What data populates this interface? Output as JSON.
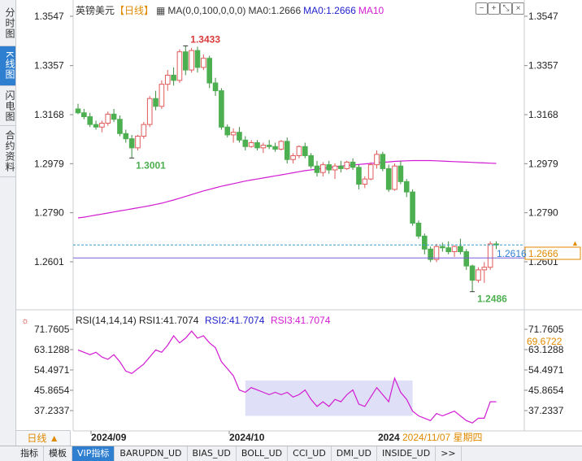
{
  "sidebar": {
    "tabs": [
      {
        "label": "分时图",
        "active": false
      },
      {
        "label": "K线图",
        "active": true
      },
      {
        "label": "闪电图",
        "active": false
      },
      {
        "label": "合约资料",
        "active": false
      }
    ]
  },
  "header": {
    "instrument": "英镑美元",
    "period_tag": "【日线】",
    "ma_settings": "MA(0,0,100,0,0,0)",
    "ma0_a": "MA0:1.2666",
    "ma0_b": "MA0:1.2666",
    "ma10": "MA10",
    "toolbar_icons": [
      "minus-icon",
      "plus-icon",
      "zoom-out-icon",
      "close-icon"
    ]
  },
  "rsi_header": {
    "settings": "RSI(14,14,14)",
    "rsi1": "RSI1:41.7074",
    "rsi2": "RSI2:41.7074",
    "rsi3": "RSI3:41.7074"
  },
  "price_axis": {
    "left_ticks": [
      "1.3547",
      "1.3357",
      "1.3168",
      "1.2979",
      "1.2790",
      "1.2601"
    ],
    "right_ticks": [
      "1.3547",
      "1.3357",
      "1.3168",
      "1.2979",
      "1.2790",
      "1.2601"
    ],
    "current_price": "1.2666",
    "cursor_price": "1.2616"
  },
  "rsi_axis": {
    "left_ticks": [
      "71.7605",
      "63.1288",
      "54.4971",
      "45.8654",
      "37.2337"
    ],
    "right_ticks": [
      "71.7605",
      "63.1288",
      "54.4971",
      "45.8654",
      "37.2337"
    ],
    "current_value": "69.6722"
  },
  "time_axis": {
    "labels": [
      "2024/09",
      "2024/10",
      "2024"
    ],
    "cursor_date": "2024/11/07 星期四"
  },
  "annotations": {
    "high_label": "1.3433",
    "low_label_1": "1.3001",
    "low_label_2": "1.2486"
  },
  "colors": {
    "up": "#e05a5a",
    "down": "#4caf50",
    "ma": "#d21bd2",
    "rsi": "#d21bd2",
    "highlight": "#dfe0f7",
    "accent": "#2f7fd1"
  },
  "bottom_tabs": [
    "指标",
    "模板",
    "VIP指标",
    "BARUPDN_UD",
    "BIAS_UD",
    "BOLL_UD",
    "CCI_UD",
    "DMI_UD",
    "INSIDE_UD",
    ">>"
  ],
  "period_button": "日线 ▲",
  "chart_data": {
    "type": "candlestick",
    "price_ylim": [
      1.2486,
      1.3547
    ],
    "candles": [
      [
        1.319,
        1.321,
        1.317,
        1.3175
      ],
      [
        1.3175,
        1.319,
        1.315,
        1.316
      ],
      [
        1.316,
        1.3175,
        1.312,
        1.313
      ],
      [
        1.313,
        1.3145,
        1.311,
        1.312
      ],
      [
        1.312,
        1.3145,
        1.31,
        1.3135
      ],
      [
        1.3135,
        1.318,
        1.3125,
        1.317
      ],
      [
        1.317,
        1.319,
        1.314,
        1.315
      ],
      [
        1.315,
        1.3165,
        1.3085,
        1.3095
      ],
      [
        1.3095,
        1.311,
        1.306,
        1.3075
      ],
      [
        1.3075,
        1.309,
        1.3001,
        1.304
      ],
      [
        1.304,
        1.309,
        1.303,
        1.3085
      ],
      [
        1.3085,
        1.314,
        1.3075,
        1.313
      ],
      [
        1.313,
        1.324,
        1.312,
        1.323
      ],
      [
        1.323,
        1.326,
        1.3185,
        1.32
      ],
      [
        1.32,
        1.33,
        1.319,
        1.3285
      ],
      [
        1.3285,
        1.334,
        1.326,
        1.332
      ],
      [
        1.332,
        1.335,
        1.328,
        1.33
      ],
      [
        1.33,
        1.342,
        1.329,
        1.341
      ],
      [
        1.341,
        1.3433,
        1.332,
        1.334
      ],
      [
        1.334,
        1.3425,
        1.333,
        1.3415
      ],
      [
        1.3415,
        1.343,
        1.333,
        1.335
      ],
      [
        1.335,
        1.34,
        1.334,
        1.3385
      ],
      [
        1.3385,
        1.3395,
        1.327,
        1.329
      ],
      [
        1.329,
        1.331,
        1.324,
        1.326
      ],
      [
        1.326,
        1.327,
        1.311,
        1.312
      ],
      [
        1.312,
        1.313,
        1.308,
        1.309
      ],
      [
        1.309,
        1.3115,
        1.306,
        1.31
      ],
      [
        1.31,
        1.312,
        1.306,
        1.307
      ],
      [
        1.307,
        1.3085,
        1.303,
        1.3045
      ],
      [
        1.3045,
        1.307,
        1.304,
        1.306
      ],
      [
        1.306,
        1.307,
        1.303,
        1.304
      ],
      [
        1.304,
        1.306,
        1.302,
        1.305
      ],
      [
        1.305,
        1.307,
        1.3035,
        1.3045
      ],
      [
        1.3045,
        1.306,
        1.3025,
        1.3035
      ],
      [
        1.3035,
        1.307,
        1.303,
        1.3065
      ],
      [
        1.3065,
        1.308,
        1.298,
        1.2995
      ],
      [
        1.2995,
        1.302,
        1.298,
        1.301
      ],
      [
        1.301,
        1.305,
        1.3,
        1.3045
      ],
      [
        1.3045,
        1.306,
        1.3,
        1.301
      ],
      [
        1.301,
        1.302,
        1.296,
        1.297
      ],
      [
        1.297,
        1.299,
        1.293,
        1.2945
      ],
      [
        1.2945,
        1.2985,
        1.293,
        1.2975
      ],
      [
        1.2975,
        1.299,
        1.294,
        1.2955
      ],
      [
        1.2955,
        1.298,
        1.292,
        1.297
      ],
      [
        1.297,
        1.299,
        1.2945,
        1.296
      ],
      [
        1.296,
        1.299,
        1.2955,
        1.2985
      ],
      [
        1.2985,
        1.3,
        1.2955,
        1.2965
      ],
      [
        1.2965,
        1.2975,
        1.288,
        1.29
      ],
      [
        1.29,
        1.293,
        1.2885,
        1.292
      ],
      [
        1.292,
        1.2985,
        1.2915,
        1.2975
      ],
      [
        1.2975,
        1.303,
        1.296,
        1.3015
      ],
      [
        1.3015,
        1.3025,
        1.295,
        1.296
      ],
      [
        1.296,
        1.2975,
        1.287,
        1.288
      ],
      [
        1.288,
        1.298,
        1.2875,
        1.297
      ],
      [
        1.297,
        1.299,
        1.29,
        1.291
      ],
      [
        1.291,
        1.292,
        1.285,
        1.287
      ],
      [
        1.287,
        1.288,
        1.274,
        1.275
      ],
      [
        1.275,
        1.276,
        1.269,
        1.27
      ],
      [
        1.27,
        1.271,
        1.263,
        1.265
      ],
      [
        1.265,
        1.266,
        1.26,
        1.261
      ],
      [
        1.261,
        1.267,
        1.26,
        1.266
      ],
      [
        1.266,
        1.2675,
        1.264,
        1.2655
      ],
      [
        1.2655,
        1.268,
        1.263,
        1.264
      ],
      [
        1.264,
        1.2665,
        1.262,
        1.266
      ],
      [
        1.266,
        1.269,
        1.263,
        1.264
      ],
      [
        1.264,
        1.265,
        1.257,
        1.2585
      ],
      [
        1.2585,
        1.259,
        1.2486,
        1.253
      ],
      [
        1.253,
        1.258,
        1.252,
        1.257
      ],
      [
        1.257,
        1.26,
        1.252,
        1.258
      ],
      [
        1.258,
        1.268,
        1.257,
        1.267
      ],
      [
        1.267,
        1.268,
        1.265,
        1.2666
      ]
    ],
    "ma100": [
      1.277,
      1.2773,
      1.2777,
      1.2781,
      1.2785,
      1.2789,
      1.2793,
      1.2797,
      1.2801,
      1.2805,
      1.2809,
      1.2813,
      1.2817,
      1.2822,
      1.2827,
      1.2833,
      1.2839,
      1.2846,
      1.2853,
      1.286,
      1.2867,
      1.2874,
      1.288,
      1.2886,
      1.2892,
      1.2897,
      1.2902,
      1.2907,
      1.2912,
      1.2916,
      1.292,
      1.2924,
      1.2928,
      1.2932,
      1.2936,
      1.294,
      1.2944,
      1.2948,
      1.2952,
      1.2955,
      1.2958,
      1.2961,
      1.2964,
      1.2967,
      1.297,
      1.2972,
      1.2974,
      1.2976,
      1.2978,
      1.298,
      1.2982,
      1.2984,
      1.2986,
      1.2988,
      1.2989,
      1.299,
      1.2991,
      1.2991,
      1.2991,
      1.2991,
      1.299,
      1.2989,
      1.2988,
      1.2987,
      1.2986,
      1.2985,
      1.2984,
      1.2983,
      1.2982,
      1.2981,
      1.298
    ],
    "rsi_ylim": [
      31,
      73
    ],
    "rsi": [
      63,
      62,
      61,
      62,
      60,
      59,
      61,
      58,
      54,
      53,
      55,
      57,
      60,
      63,
      62,
      65,
      69,
      66,
      68,
      71,
      68,
      69,
      66,
      64,
      58,
      55,
      52,
      46,
      45,
      47,
      46,
      45,
      44,
      45,
      44,
      45,
      43,
      44,
      46,
      42,
      39,
      41,
      39,
      42,
      41,
      44,
      46,
      40,
      39,
      43,
      47,
      44,
      41,
      51,
      45,
      42,
      37,
      35,
      34,
      33,
      36,
      35,
      36,
      37,
      35,
      33,
      32,
      34,
      34,
      41,
      41
    ],
    "rsi_highlight_range": [
      48,
      50
    ]
  }
}
